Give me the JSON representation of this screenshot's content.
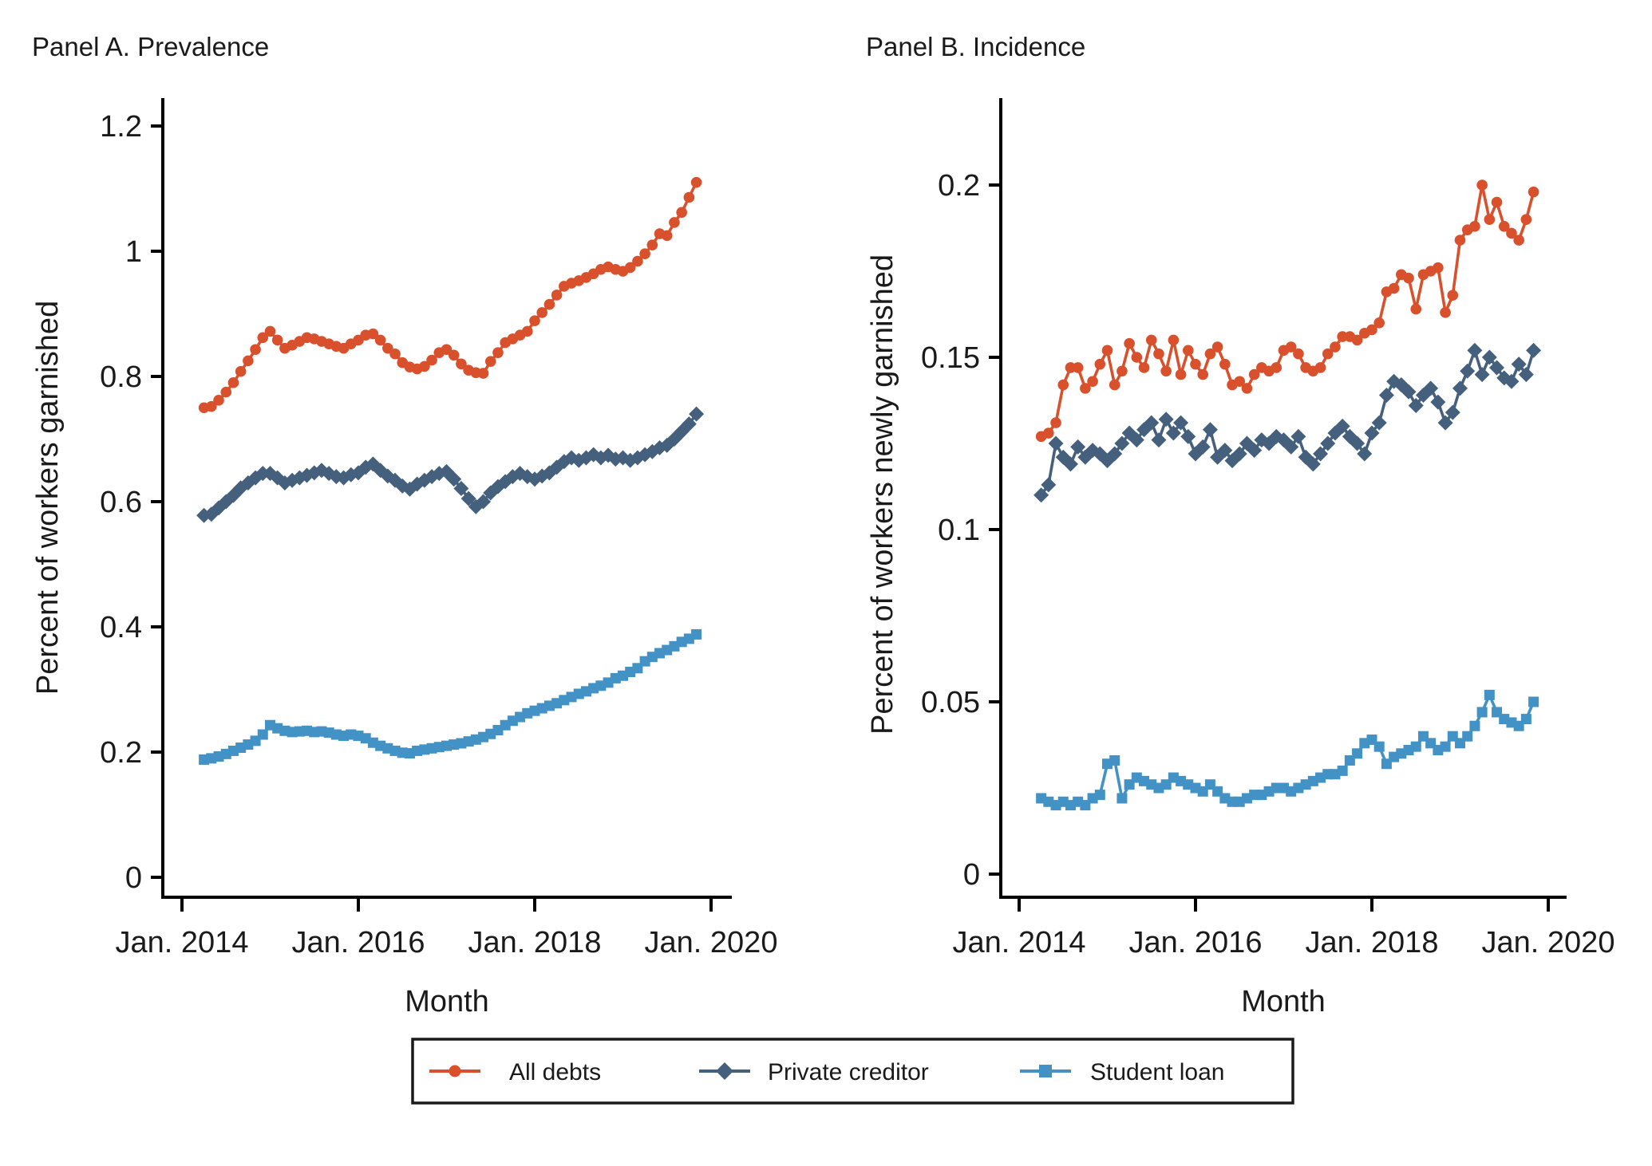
{
  "figure": {
    "type_note": "two-panel monthly time-series line chart",
    "colors": {
      "all_debts": "#d9512c",
      "private_creditor": "#44607d",
      "student_loan": "#4292c5",
      "axis": "#000000",
      "text": "#1a1a1a"
    }
  },
  "legend": {
    "items": [
      {
        "label": "All debts",
        "marker": "circle",
        "color": "#d9512c"
      },
      {
        "label": "Private creditor",
        "marker": "diamond",
        "color": "#44607d"
      },
      {
        "label": "Student loan",
        "marker": "square",
        "color": "#4292c5"
      }
    ]
  },
  "chart_data": [
    {
      "id": "panel_a",
      "type": "line",
      "title": "Panel A. Prevalence",
      "ylabel": "Percent of workers garnished",
      "xlabel": "Month",
      "x_start_month": "2014-04",
      "x_step_months": 1,
      "ylim": [
        0,
        1.28
      ],
      "y_ticks": [
        0,
        0.2,
        0.4,
        0.6,
        0.8,
        1.0,
        1.2
      ],
      "y_tick_labels": [
        "0",
        "0.2",
        "0.4",
        "0.6",
        "0.8",
        "1",
        "1.2"
      ],
      "x_ticks_years": [
        2014,
        2016,
        2018,
        2020
      ],
      "x_tick_labels": [
        "Jan. 2014",
        "Jan. 2016",
        "Jan. 2018",
        "Jan. 2020"
      ],
      "grid": false,
      "series": [
        {
          "name": "All debts",
          "marker": "circle",
          "color": "#d9512c",
          "values": [
            0.75,
            0.752,
            0.762,
            0.775,
            0.79,
            0.808,
            0.825,
            0.843,
            0.862,
            0.872,
            0.858,
            0.845,
            0.85,
            0.856,
            0.862,
            0.86,
            0.856,
            0.852,
            0.848,
            0.845,
            0.852,
            0.858,
            0.866,
            0.868,
            0.858,
            0.845,
            0.836,
            0.822,
            0.815,
            0.812,
            0.816,
            0.826,
            0.838,
            0.843,
            0.834,
            0.82,
            0.81,
            0.806,
            0.805,
            0.824,
            0.838,
            0.854,
            0.86,
            0.866,
            0.872,
            0.889,
            0.902,
            0.915,
            0.93,
            0.944,
            0.949,
            0.953,
            0.958,
            0.964,
            0.971,
            0.975,
            0.971,
            0.968,
            0.974,
            0.984,
            0.996,
            1.01,
            1.028,
            1.025,
            1.046,
            1.062,
            1.086,
            1.11
          ]
        },
        {
          "name": "Private creditor",
          "marker": "diamond",
          "color": "#44607d",
          "values": [
            0.578,
            0.58,
            0.59,
            0.6,
            0.61,
            0.622,
            0.63,
            0.638,
            0.645,
            0.645,
            0.638,
            0.63,
            0.634,
            0.638,
            0.642,
            0.646,
            0.65,
            0.645,
            0.64,
            0.638,
            0.643,
            0.646,
            0.655,
            0.66,
            0.65,
            0.641,
            0.634,
            0.625,
            0.62,
            0.628,
            0.634,
            0.64,
            0.645,
            0.648,
            0.636,
            0.621,
            0.605,
            0.592,
            0.6,
            0.614,
            0.624,
            0.632,
            0.64,
            0.645,
            0.64,
            0.636,
            0.641,
            0.646,
            0.655,
            0.664,
            0.67,
            0.666,
            0.67,
            0.675,
            0.67,
            0.674,
            0.668,
            0.67,
            0.666,
            0.67,
            0.675,
            0.68,
            0.686,
            0.69,
            0.7,
            0.712,
            0.724,
            0.74
          ]
        },
        {
          "name": "Student loan",
          "marker": "square",
          "color": "#4292c5",
          "values": [
            0.188,
            0.19,
            0.193,
            0.197,
            0.202,
            0.207,
            0.212,
            0.218,
            0.228,
            0.243,
            0.238,
            0.234,
            0.232,
            0.233,
            0.234,
            0.232,
            0.233,
            0.231,
            0.228,
            0.226,
            0.228,
            0.226,
            0.222,
            0.215,
            0.21,
            0.206,
            0.202,
            0.199,
            0.198,
            0.202,
            0.204,
            0.206,
            0.208,
            0.21,
            0.212,
            0.214,
            0.217,
            0.22,
            0.224,
            0.229,
            0.235,
            0.243,
            0.25,
            0.256,
            0.262,
            0.266,
            0.27,
            0.274,
            0.278,
            0.283,
            0.288,
            0.293,
            0.297,
            0.302,
            0.306,
            0.311,
            0.318,
            0.322,
            0.328,
            0.334,
            0.345,
            0.352,
            0.358,
            0.363,
            0.369,
            0.376,
            0.381,
            0.388
          ]
        }
      ]
    },
    {
      "id": "panel_b",
      "type": "line",
      "title": "Panel B. Incidence",
      "ylabel": "Percent of workers newly garnished",
      "xlabel": "Month",
      "x_start_month": "2014-04",
      "x_step_months": 1,
      "ylim": [
        0,
        0.232
      ],
      "y_ticks": [
        0,
        0.05,
        0.1,
        0.15,
        0.2
      ],
      "y_tick_labels": [
        "0",
        "0.05",
        "0.1",
        "0.15",
        "0.2"
      ],
      "x_ticks_years": [
        2014,
        2016,
        2018,
        2020
      ],
      "x_tick_labels": [
        "Jan. 2014",
        "Jan. 2016",
        "Jan. 2018",
        "Jan. 2020"
      ],
      "grid": false,
      "series": [
        {
          "name": "All debts",
          "marker": "circle",
          "color": "#d9512c",
          "values": [
            0.127,
            0.128,
            0.131,
            0.142,
            0.147,
            0.147,
            0.141,
            0.143,
            0.148,
            0.152,
            0.142,
            0.146,
            0.154,
            0.15,
            0.147,
            0.155,
            0.151,
            0.146,
            0.155,
            0.145,
            0.152,
            0.148,
            0.145,
            0.151,
            0.153,
            0.148,
            0.142,
            0.143,
            0.141,
            0.145,
            0.147,
            0.146,
            0.147,
            0.152,
            0.153,
            0.151,
            0.147,
            0.146,
            0.147,
            0.151,
            0.153,
            0.156,
            0.156,
            0.155,
            0.157,
            0.158,
            0.16,
            0.169,
            0.17,
            0.174,
            0.173,
            0.164,
            0.174,
            0.175,
            0.176,
            0.163,
            0.168,
            0.184,
            0.187,
            0.188,
            0.2,
            0.19,
            0.195,
            0.188,
            0.186,
            0.184,
            0.19,
            0.198
          ]
        },
        {
          "name": "Private creditor",
          "marker": "diamond",
          "color": "#44607d",
          "values": [
            0.11,
            0.113,
            0.125,
            0.121,
            0.119,
            0.124,
            0.121,
            0.123,
            0.122,
            0.12,
            0.122,
            0.125,
            0.128,
            0.126,
            0.129,
            0.131,
            0.126,
            0.132,
            0.128,
            0.131,
            0.127,
            0.122,
            0.124,
            0.129,
            0.121,
            0.123,
            0.12,
            0.122,
            0.125,
            0.123,
            0.126,
            0.125,
            0.127,
            0.126,
            0.124,
            0.127,
            0.121,
            0.119,
            0.122,
            0.125,
            0.128,
            0.13,
            0.127,
            0.125,
            0.122,
            0.128,
            0.131,
            0.139,
            0.143,
            0.142,
            0.14,
            0.136,
            0.139,
            0.141,
            0.137,
            0.131,
            0.134,
            0.141,
            0.146,
            0.152,
            0.145,
            0.15,
            0.147,
            0.144,
            0.143,
            0.148,
            0.145,
            0.152
          ]
        },
        {
          "name": "Student loan",
          "marker": "square",
          "color": "#4292c5",
          "values": [
            0.022,
            0.021,
            0.02,
            0.021,
            0.02,
            0.021,
            0.02,
            0.022,
            0.023,
            0.032,
            0.033,
            0.022,
            0.026,
            0.028,
            0.027,
            0.026,
            0.025,
            0.026,
            0.028,
            0.027,
            0.026,
            0.025,
            0.024,
            0.026,
            0.024,
            0.022,
            0.021,
            0.021,
            0.022,
            0.023,
            0.023,
            0.024,
            0.025,
            0.025,
            0.024,
            0.025,
            0.026,
            0.027,
            0.028,
            0.029,
            0.029,
            0.03,
            0.033,
            0.035,
            0.038,
            0.039,
            0.037,
            0.032,
            0.034,
            0.035,
            0.036,
            0.037,
            0.04,
            0.038,
            0.036,
            0.037,
            0.04,
            0.038,
            0.04,
            0.043,
            0.047,
            0.052,
            0.047,
            0.045,
            0.044,
            0.043,
            0.045,
            0.05
          ]
        }
      ]
    }
  ]
}
